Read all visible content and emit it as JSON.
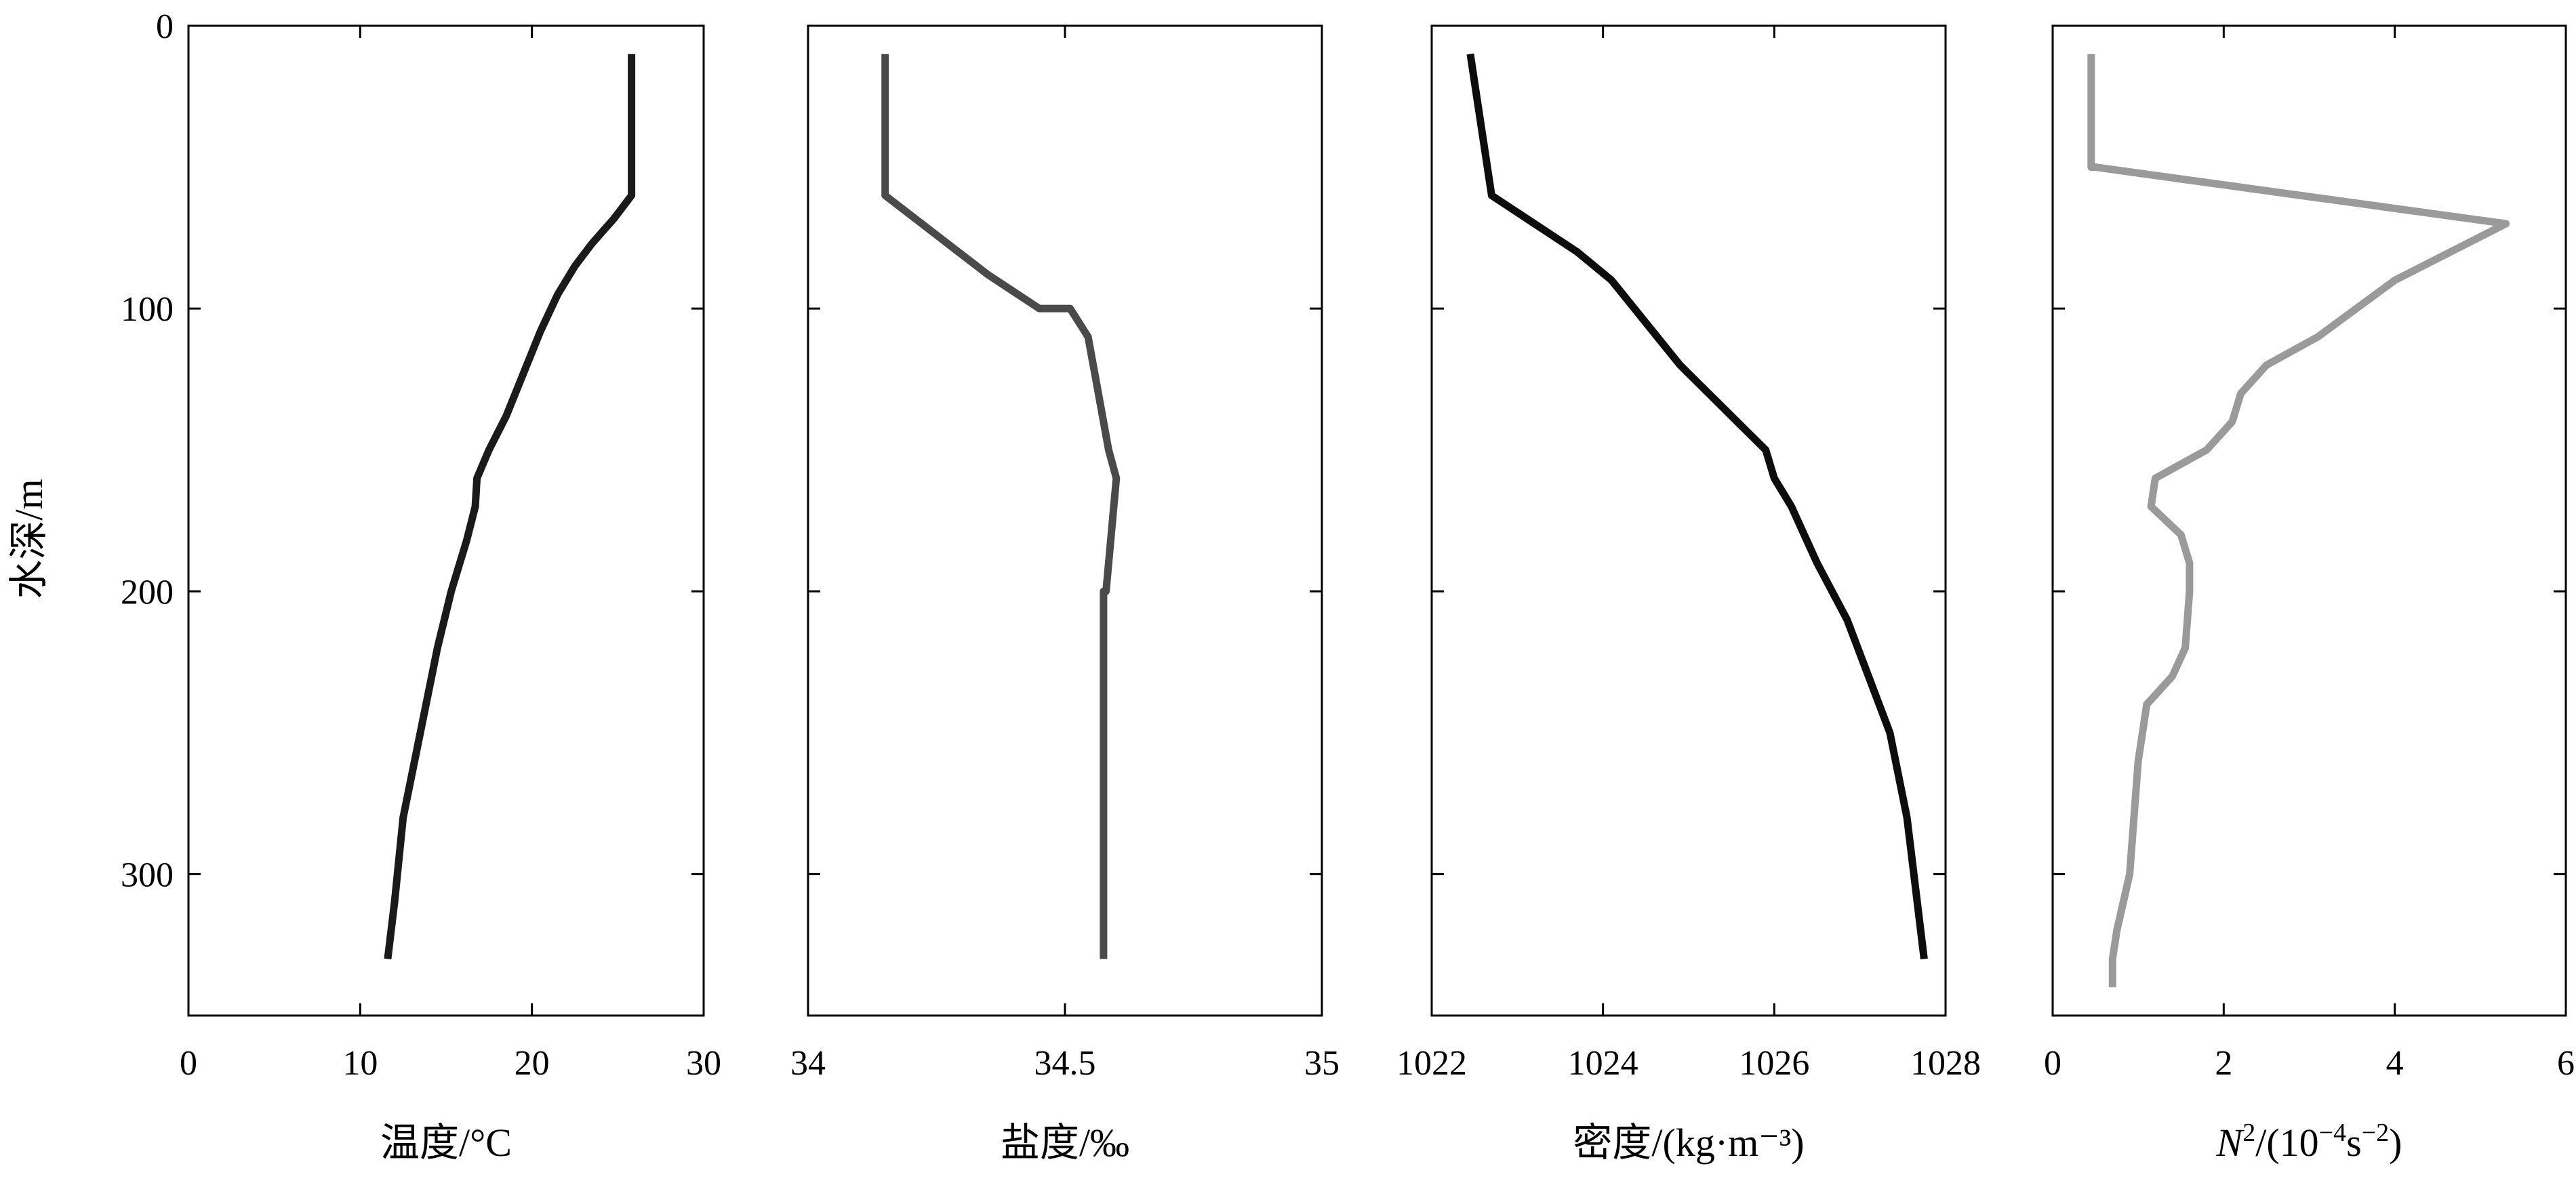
{
  "y_axis_label": "水深/m",
  "chart_data": [
    {
      "type": "line",
      "xlabel": "温度/°C",
      "ylabel": "水深/m",
      "xlim": [
        0,
        30
      ],
      "ylim": [
        350,
        0
      ],
      "y_inverted": true,
      "xticks": [
        0,
        10,
        20,
        30
      ],
      "yticks": [
        0,
        100,
        200,
        300
      ],
      "grid": false,
      "color": "#1a1a1a",
      "series": [
        {
          "x": [
            25.8,
            25.8,
            24.8,
            23.5,
            22.5,
            21.5,
            20.5,
            19.5,
            18.5,
            17.5,
            16.8,
            16.7,
            16.2,
            15.3,
            14.5,
            13.5,
            12.5,
            12.0,
            11.6
          ],
          "y": [
            10,
            60,
            68,
            77,
            85,
            95,
            108,
            123,
            138,
            150,
            160,
            170,
            182,
            200,
            220,
            250,
            280,
            310,
            330
          ]
        }
      ]
    },
    {
      "type": "line",
      "xlabel": "盐度/‰",
      "xlim": [
        34,
        35
      ],
      "ylim": [
        350,
        0
      ],
      "y_inverted": true,
      "xticks": [
        34,
        34.5,
        35
      ],
      "grid": false,
      "color": "#4a4a4a",
      "series": [
        {
          "x": [
            34.15,
            34.15,
            34.25,
            34.35,
            34.45,
            34.51,
            34.545,
            34.565,
            34.585,
            34.6,
            34.6,
            34.58,
            34.575,
            34.575,
            34.575
          ],
          "y": [
            10,
            60,
            74,
            88,
            100,
            100,
            110,
            130,
            150,
            160,
            160,
            200,
            200,
            260,
            330
          ]
        }
      ]
    },
    {
      "type": "line",
      "xlabel": "密度/(kg·m⁻³)",
      "xlim": [
        1022,
        1028
      ],
      "ylim": [
        350,
        0
      ],
      "y_inverted": true,
      "xticks": [
        1022,
        1024,
        1026,
        1028
      ],
      "grid": false,
      "color": "#0d0d0d",
      "series": [
        {
          "x": [
            1022.45,
            1022.7,
            1023.2,
            1023.7,
            1024.1,
            1024.5,
            1024.9,
            1025.4,
            1025.9,
            1026.0,
            1026.2,
            1026.5,
            1026.85,
            1027.1,
            1027.35,
            1027.55,
            1027.75
          ],
          "y": [
            10,
            60,
            70,
            80,
            90,
            105,
            120,
            135,
            150,
            160,
            170,
            190,
            210,
            230,
            250,
            280,
            330
          ]
        }
      ]
    },
    {
      "type": "line",
      "xlabel_italic": "N",
      "xlabel_sup1": "2",
      "xlabel_rest": "/(10",
      "xlabel_sup2": "−4",
      "xlabel_unit": "s",
      "xlabel_sup3": "−2",
      "xlabel_close": ")",
      "xlim": [
        0,
        6
      ],
      "ylim": [
        350,
        0
      ],
      "y_inverted": true,
      "xticks": [
        0,
        2,
        4,
        6
      ],
      "grid": false,
      "color": "#9a9a9a",
      "series": [
        {
          "x": [
            0.45,
            0.45,
            0.5,
            5.3,
            4.0,
            3.1,
            2.5,
            2.2,
            2.1,
            1.8,
            1.2,
            1.15,
            1.5,
            1.6,
            1.6,
            1.55,
            1.4,
            1.1,
            1.0,
            0.9,
            0.75,
            0.7,
            0.7
          ],
          "y": [
            10,
            50,
            50,
            70,
            90,
            110,
            120,
            130,
            140,
            150,
            160,
            170,
            180,
            190,
            200,
            220,
            230,
            240,
            260,
            300,
            320,
            330,
            340
          ]
        }
      ]
    }
  ]
}
